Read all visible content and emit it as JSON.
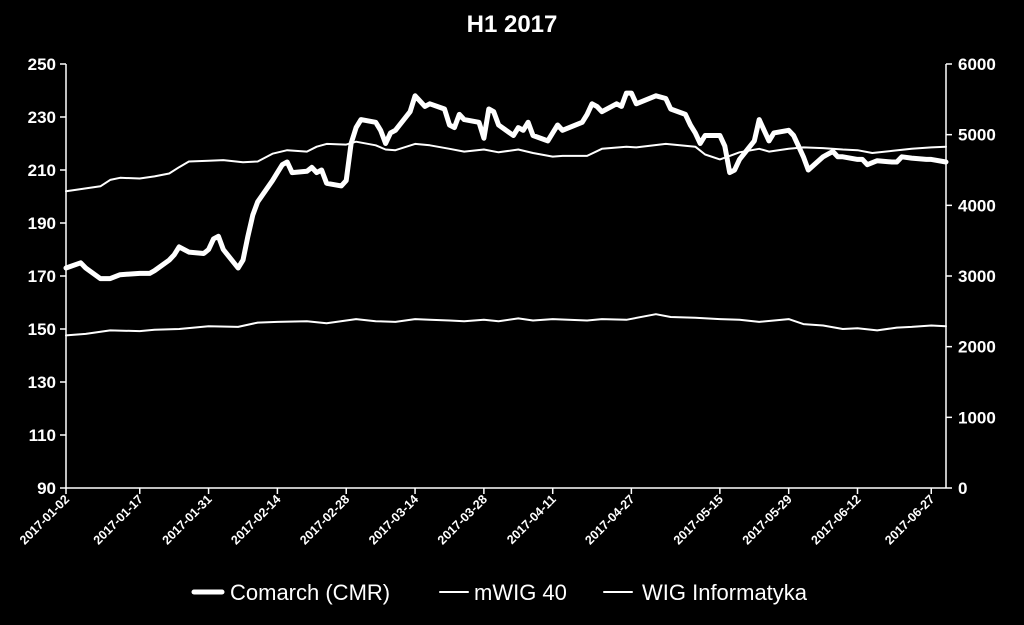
{
  "chart_data": {
    "type": "line",
    "title": "H1 2017",
    "xlabel": "",
    "ylabel": "",
    "ylim_left": [
      90,
      250
    ],
    "ylim_right": [
      0,
      6000
    ],
    "left_ticks": [
      90,
      110,
      130,
      150,
      170,
      190,
      210,
      230,
      250
    ],
    "right_ticks": [
      0,
      1000,
      2000,
      3000,
      4000,
      5000,
      6000
    ],
    "x_ticks": [
      "2017-01-02",
      "2017-01-17",
      "2017-01-31",
      "2017-02-14",
      "2017-02-28",
      "2017-03-14",
      "2017-03-28",
      "2017-04-11",
      "2017-04-27",
      "2017-05-15",
      "2017-05-29",
      "2017-06-12",
      "2017-06-27"
    ],
    "grid": false,
    "legend_position": "bottom",
    "colors": {
      "background": "#000000",
      "series": "#ffffff"
    },
    "series": [
      {
        "name": "Comarch (CMR)",
        "axis": "left",
        "line_width": 5,
        "points": [
          [
            "2017-01-02",
            173
          ],
          [
            "2017-01-05",
            175
          ],
          [
            "2017-01-06",
            173
          ],
          [
            "2017-01-09",
            169
          ],
          [
            "2017-01-11",
            169
          ],
          [
            "2017-01-13",
            170.5
          ],
          [
            "2017-01-17",
            171
          ],
          [
            "2017-01-19",
            171
          ],
          [
            "2017-01-20",
            172
          ],
          [
            "2017-01-23",
            176
          ],
          [
            "2017-01-24",
            178
          ],
          [
            "2017-01-25",
            181
          ],
          [
            "2017-01-27",
            179
          ],
          [
            "2017-01-30",
            178.5
          ],
          [
            "2017-01-31",
            180
          ],
          [
            "2017-02-01",
            184
          ],
          [
            "2017-02-02",
            185
          ],
          [
            "2017-02-03",
            180
          ],
          [
            "2017-02-06",
            173
          ],
          [
            "2017-02-07",
            176
          ],
          [
            "2017-02-08",
            185
          ],
          [
            "2017-02-09",
            193
          ],
          [
            "2017-02-10",
            198
          ],
          [
            "2017-02-13",
            206
          ],
          [
            "2017-02-14",
            209
          ],
          [
            "2017-02-15",
            212
          ],
          [
            "2017-02-16",
            213
          ],
          [
            "2017-02-17",
            209
          ],
          [
            "2017-02-20",
            209.5
          ],
          [
            "2017-02-21",
            211
          ],
          [
            "2017-02-22",
            209
          ],
          [
            "2017-02-23",
            210
          ],
          [
            "2017-02-24",
            205
          ],
          [
            "2017-02-27",
            204
          ],
          [
            "2017-02-28",
            206
          ],
          [
            "2017-03-01",
            220
          ],
          [
            "2017-03-02",
            226
          ],
          [
            "2017-03-03",
            229
          ],
          [
            "2017-03-06",
            228
          ],
          [
            "2017-03-07",
            225
          ],
          [
            "2017-03-08",
            220
          ],
          [
            "2017-03-09",
            224
          ],
          [
            "2017-03-10",
            225
          ],
          [
            "2017-03-13",
            232
          ],
          [
            "2017-03-14",
            238
          ],
          [
            "2017-03-15",
            236
          ],
          [
            "2017-03-16",
            234
          ],
          [
            "2017-03-17",
            235
          ],
          [
            "2017-03-20",
            233
          ],
          [
            "2017-03-21",
            227
          ],
          [
            "2017-03-22",
            226
          ],
          [
            "2017-03-23",
            231
          ],
          [
            "2017-03-24",
            229
          ],
          [
            "2017-03-27",
            228
          ],
          [
            "2017-03-28",
            222
          ],
          [
            "2017-03-29",
            233
          ],
          [
            "2017-03-30",
            232
          ],
          [
            "2017-03-31",
            227
          ],
          [
            "2017-04-03",
            223
          ],
          [
            "2017-04-04",
            226
          ],
          [
            "2017-04-05",
            225
          ],
          [
            "2017-04-06",
            228
          ],
          [
            "2017-04-07",
            223
          ],
          [
            "2017-04-10",
            221
          ],
          [
            "2017-04-11",
            224
          ],
          [
            "2017-04-12",
            227
          ],
          [
            "2017-04-13",
            225
          ],
          [
            "2017-04-17",
            228
          ],
          [
            "2017-04-18",
            231
          ],
          [
            "2017-04-19",
            235
          ],
          [
            "2017-04-20",
            234
          ],
          [
            "2017-04-21",
            232
          ],
          [
            "2017-04-24",
            235
          ],
          [
            "2017-04-25",
            234
          ],
          [
            "2017-04-26",
            239
          ],
          [
            "2017-04-27",
            239
          ],
          [
            "2017-04-28",
            235
          ],
          [
            "2017-05-02",
            238
          ],
          [
            "2017-05-04",
            237
          ],
          [
            "2017-05-05",
            233
          ],
          [
            "2017-05-08",
            231
          ],
          [
            "2017-05-09",
            227
          ],
          [
            "2017-05-10",
            224
          ],
          [
            "2017-05-11",
            220
          ],
          [
            "2017-05-12",
            223
          ],
          [
            "2017-05-15",
            223
          ],
          [
            "2017-05-16",
            219
          ],
          [
            "2017-05-17",
            209
          ],
          [
            "2017-05-18",
            210
          ],
          [
            "2017-05-19",
            214
          ],
          [
            "2017-05-22",
            221
          ],
          [
            "2017-05-23",
            229
          ],
          [
            "2017-05-24",
            225
          ],
          [
            "2017-05-25",
            221
          ],
          [
            "2017-05-26",
            224
          ],
          [
            "2017-05-29",
            225
          ],
          [
            "2017-05-30",
            223
          ],
          [
            "2017-05-31",
            219
          ],
          [
            "2017-06-01",
            215
          ],
          [
            "2017-06-02",
            210
          ],
          [
            "2017-06-05",
            215
          ],
          [
            "2017-06-06",
            216
          ],
          [
            "2017-06-07",
            217
          ],
          [
            "2017-06-08",
            215
          ],
          [
            "2017-06-09",
            215
          ],
          [
            "2017-06-12",
            214
          ],
          [
            "2017-06-13",
            214
          ],
          [
            "2017-06-14",
            212
          ],
          [
            "2017-06-16",
            213.5
          ],
          [
            "2017-06-19",
            213
          ],
          [
            "2017-06-20",
            213
          ],
          [
            "2017-06-21",
            215
          ],
          [
            "2017-06-23",
            214.5
          ],
          [
            "2017-06-26",
            214
          ],
          [
            "2017-06-27",
            214
          ],
          [
            "2017-06-30",
            213
          ]
        ]
      },
      {
        "name": "mWIG 40",
        "axis": "right",
        "line_width": 2,
        "points": [
          [
            "2017-01-02",
            4200
          ],
          [
            "2017-01-05",
            4230
          ],
          [
            "2017-01-09",
            4270
          ],
          [
            "2017-01-11",
            4360
          ],
          [
            "2017-01-13",
            4390
          ],
          [
            "2017-01-17",
            4380
          ],
          [
            "2017-01-20",
            4410
          ],
          [
            "2017-01-23",
            4450
          ],
          [
            "2017-01-25",
            4540
          ],
          [
            "2017-01-27",
            4620
          ],
          [
            "2017-01-31",
            4630
          ],
          [
            "2017-02-03",
            4640
          ],
          [
            "2017-02-07",
            4610
          ],
          [
            "2017-02-10",
            4620
          ],
          [
            "2017-02-13",
            4730
          ],
          [
            "2017-02-16",
            4780
          ],
          [
            "2017-02-20",
            4760
          ],
          [
            "2017-02-22",
            4830
          ],
          [
            "2017-02-24",
            4870
          ],
          [
            "2017-02-28",
            4860
          ],
          [
            "2017-03-02",
            4900
          ],
          [
            "2017-03-06",
            4850
          ],
          [
            "2017-03-08",
            4790
          ],
          [
            "2017-03-10",
            4780
          ],
          [
            "2017-03-14",
            4870
          ],
          [
            "2017-03-17",
            4850
          ],
          [
            "2017-03-21",
            4800
          ],
          [
            "2017-03-24",
            4760
          ],
          [
            "2017-03-28",
            4790
          ],
          [
            "2017-03-31",
            4750
          ],
          [
            "2017-04-04",
            4790
          ],
          [
            "2017-04-07",
            4740
          ],
          [
            "2017-04-11",
            4690
          ],
          [
            "2017-04-13",
            4700
          ],
          [
            "2017-04-18",
            4700
          ],
          [
            "2017-04-21",
            4800
          ],
          [
            "2017-04-26",
            4830
          ],
          [
            "2017-04-28",
            4820
          ],
          [
            "2017-05-04",
            4870
          ],
          [
            "2017-05-10",
            4830
          ],
          [
            "2017-05-12",
            4720
          ],
          [
            "2017-05-15",
            4650
          ],
          [
            "2017-05-17",
            4700
          ],
          [
            "2017-05-19",
            4750
          ],
          [
            "2017-05-23",
            4800
          ],
          [
            "2017-05-25",
            4760
          ],
          [
            "2017-05-29",
            4800
          ],
          [
            "2017-06-01",
            4820
          ],
          [
            "2017-06-05",
            4810
          ],
          [
            "2017-06-09",
            4790
          ],
          [
            "2017-06-12",
            4780
          ],
          [
            "2017-06-15",
            4740
          ],
          [
            "2017-06-19",
            4770
          ],
          [
            "2017-06-23",
            4800
          ],
          [
            "2017-06-27",
            4820
          ],
          [
            "2017-06-30",
            4830
          ]
        ]
      },
      {
        "name": "WIG Informatyka",
        "axis": "right",
        "line_width": 2,
        "points": [
          [
            "2017-01-02",
            2160
          ],
          [
            "2017-01-06",
            2180
          ],
          [
            "2017-01-11",
            2230
          ],
          [
            "2017-01-17",
            2220
          ],
          [
            "2017-01-20",
            2240
          ],
          [
            "2017-01-25",
            2250
          ],
          [
            "2017-01-31",
            2290
          ],
          [
            "2017-02-06",
            2280
          ],
          [
            "2017-02-10",
            2340
          ],
          [
            "2017-02-14",
            2350
          ],
          [
            "2017-02-20",
            2360
          ],
          [
            "2017-02-24",
            2330
          ],
          [
            "2017-02-28",
            2370
          ],
          [
            "2017-03-02",
            2390
          ],
          [
            "2017-03-06",
            2360
          ],
          [
            "2017-03-10",
            2350
          ],
          [
            "2017-03-14",
            2390
          ],
          [
            "2017-03-17",
            2380
          ],
          [
            "2017-03-21",
            2370
          ],
          [
            "2017-03-24",
            2360
          ],
          [
            "2017-03-28",
            2380
          ],
          [
            "2017-03-31",
            2360
          ],
          [
            "2017-04-04",
            2400
          ],
          [
            "2017-04-07",
            2370
          ],
          [
            "2017-04-11",
            2390
          ],
          [
            "2017-04-18",
            2370
          ],
          [
            "2017-04-21",
            2390
          ],
          [
            "2017-04-26",
            2380
          ],
          [
            "2017-05-02",
            2460
          ],
          [
            "2017-05-05",
            2420
          ],
          [
            "2017-05-10",
            2410
          ],
          [
            "2017-05-15",
            2390
          ],
          [
            "2017-05-19",
            2380
          ],
          [
            "2017-05-23",
            2350
          ],
          [
            "2017-05-29",
            2390
          ],
          [
            "2017-06-01",
            2320
          ],
          [
            "2017-06-05",
            2300
          ],
          [
            "2017-06-09",
            2250
          ],
          [
            "2017-06-12",
            2260
          ],
          [
            "2017-06-16",
            2230
          ],
          [
            "2017-06-20",
            2270
          ],
          [
            "2017-06-23",
            2280
          ],
          [
            "2017-06-27",
            2300
          ],
          [
            "2017-06-30",
            2290
          ]
        ]
      }
    ]
  }
}
